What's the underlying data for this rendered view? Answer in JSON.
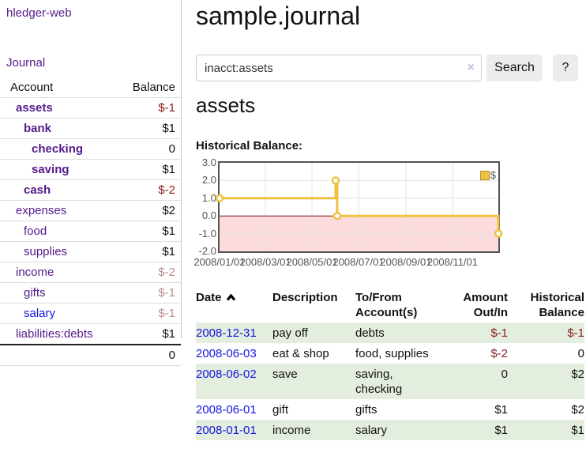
{
  "app": {
    "title": "hledger-web",
    "nav_journal": "Journal"
  },
  "sidebar": {
    "headers": {
      "account": "Account",
      "balance": "Balance"
    },
    "accounts": [
      {
        "name": "assets",
        "balance": "$-1",
        "depth": 0,
        "bold": true,
        "neg": "strong"
      },
      {
        "name": "bank",
        "balance": "$1",
        "depth": 1,
        "bold": true
      },
      {
        "name": "checking",
        "balance": "0",
        "depth": 2,
        "bold": true
      },
      {
        "name": "saving",
        "balance": "$1",
        "depth": 2,
        "bold": true
      },
      {
        "name": "cash",
        "balance": "$-2",
        "depth": 1,
        "bold": true,
        "neg": "strong"
      },
      {
        "name": "expenses",
        "balance": "$2",
        "depth": 0
      },
      {
        "name": "food",
        "balance": "$1",
        "depth": 1
      },
      {
        "name": "supplies",
        "balance": "$1",
        "depth": 1
      },
      {
        "name": "income",
        "balance": "$-2",
        "depth": 0,
        "neg": "muted"
      },
      {
        "name": "gifts",
        "balance": "$-1",
        "depth": 1,
        "neg": "muted"
      },
      {
        "name": "salary",
        "balance": "$-1",
        "depth": 1,
        "neg": "muted",
        "blue": true
      },
      {
        "name": "liabilities:debts",
        "balance": "$1",
        "depth": 0
      }
    ],
    "total": "0"
  },
  "header": {
    "title": "sample.journal"
  },
  "search": {
    "value": "inacct:assets",
    "clear_icon": "×",
    "button": "Search",
    "help_button": "?"
  },
  "account_page": {
    "heading": "assets",
    "chart_label": "Historical Balance:"
  },
  "chart_data": {
    "type": "line",
    "step": true,
    "title": "Historical Balance:",
    "series": [
      {
        "name": "$",
        "color": "#edc240",
        "points": [
          [
            "2008-01-01",
            1
          ],
          [
            "2008-06-01",
            2
          ],
          [
            "2008-06-02",
            2
          ],
          [
            "2008-06-03",
            0
          ],
          [
            "2008-12-31",
            -1
          ]
        ]
      }
    ],
    "x_range": [
      "2008-01-01",
      "2008-12-31"
    ],
    "ylim": [
      -2,
      3
    ],
    "y_ticks": [
      "3.0",
      "2.0",
      "1.0",
      "0.0",
      "-1.0",
      "-2.0"
    ],
    "x_ticks": [
      {
        "date": "2008-01-01",
        "label": "2008/01/01"
      },
      {
        "date": "2008-03-01",
        "label": "2008/03/01"
      },
      {
        "date": "2008-05-01",
        "label": "2008/05/01"
      },
      {
        "date": "2008-07-01",
        "label": "2008/07/01"
      },
      {
        "date": "2008-09-01",
        "label": "2008/09/01"
      },
      {
        "date": "2008-11-01",
        "label": "2008/11/01"
      }
    ],
    "grid": true,
    "legend_position": "top-right",
    "colors": {
      "grid": "#e3e3e3",
      "border": "#545454",
      "zero_line": "#8f0e0e",
      "negative_region_fill": "#fbdbdb",
      "marker_fill": "#ffffff"
    }
  },
  "register": {
    "headers": [
      {
        "label": "Date",
        "sorted": "ascending"
      },
      {
        "label": "Description"
      },
      {
        "label": "To/From Account(s)"
      },
      {
        "label": "Amount Out/In"
      },
      {
        "label": "Historical Balance"
      }
    ],
    "rows": [
      {
        "date": "2008-12-31",
        "description": "pay off",
        "accounts": "debts",
        "amount": "$-1",
        "amount_neg": true,
        "balance": "$-1",
        "balance_neg": true,
        "shaded": true
      },
      {
        "date": "2008-06-03",
        "description": "eat & shop",
        "accounts": "food, supplies",
        "amount": "$-2",
        "amount_neg": true,
        "balance": "0",
        "shaded": false
      },
      {
        "date": "2008-06-02",
        "description": "save",
        "accounts": "saving,\nchecking",
        "amount": "0",
        "balance": "$2",
        "shaded": true
      },
      {
        "date": "2008-06-01",
        "description": "gift",
        "accounts": "gifts",
        "amount": "$1",
        "balance": "$2",
        "shaded": false
      },
      {
        "date": "2008-01-01",
        "description": "income",
        "accounts": "salary",
        "amount": "$1",
        "balance": "$1",
        "shaded": true
      }
    ]
  }
}
